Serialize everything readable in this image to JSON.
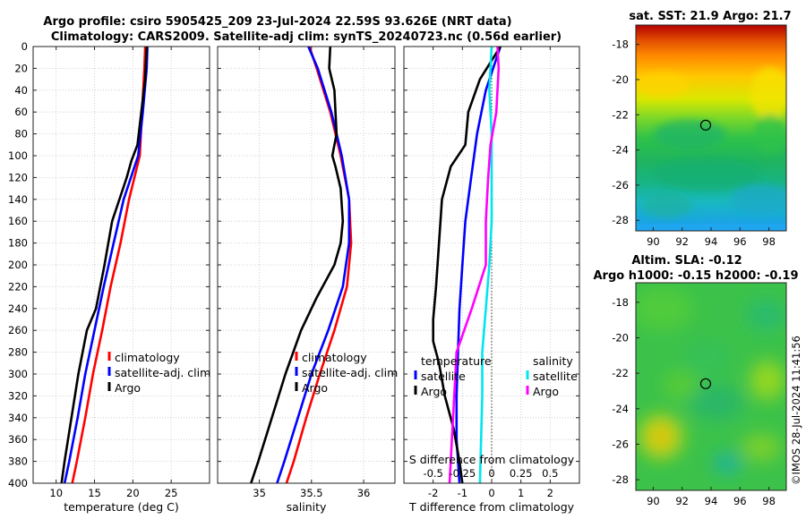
{
  "header": {
    "title_line1": "Argo profile: csiro 5905425_209 23-Jul-2024 22.59S 93.626E (NRT data)",
    "title_line2": "Climatology: CARS2009. Satellite-adj clim: synTS_20240723.nc (0.56d earlier)"
  },
  "footer": {
    "stamp": "©IMOS 28-Jul-2024 11:41:56"
  },
  "colors": {
    "climatology": "#ff0000",
    "satellite": "#0000ff",
    "argo": "#000000",
    "salinity_sat": "#00e5ee",
    "salinity_argo": "#ff00ff",
    "marker": "#000000"
  },
  "chart_data": [
    {
      "id": "temperature",
      "type": "line",
      "xlabel": "temperature (deg C)",
      "ylabel": "",
      "xlim": [
        7,
        30
      ],
      "ylim": [
        400,
        0
      ],
      "xticks": [
        10,
        15,
        20,
        25
      ],
      "xtick_labels": [
        "10",
        "15",
        "20",
        "25"
      ],
      "yticks": [
        0,
        20,
        40,
        60,
        80,
        100,
        120,
        140,
        160,
        180,
        200,
        220,
        240,
        260,
        280,
        300,
        320,
        340,
        360,
        380,
        400
      ],
      "ytick_labels": [
        "0",
        "20",
        "40",
        "60",
        "80",
        "100",
        "120",
        "140",
        "160",
        "180",
        "200",
        "220",
        "240",
        "260",
        "280",
        "300",
        "320",
        "340",
        "360",
        "380",
        "400"
      ],
      "legend": [
        "climatology",
        "satellite-adj. clim",
        "Argo"
      ],
      "series": [
        {
          "name": "climatology",
          "color": "#ff0000",
          "depth": [
            0,
            20,
            60,
            100,
            140,
            180,
            220,
            260,
            300,
            340,
            380,
            400
          ],
          "values": [
            21.6,
            21.5,
            21.2,
            20.9,
            19.5,
            18.4,
            17.1,
            16.0,
            14.8,
            13.8,
            12.7,
            12.1
          ]
        },
        {
          "name": "satellite-adj. clim",
          "color": "#0000ff",
          "depth": [
            0,
            20,
            60,
            100,
            140,
            180,
            220,
            260,
            300,
            340,
            380,
            400
          ],
          "values": [
            21.9,
            21.8,
            21.3,
            20.7,
            18.8,
            17.5,
            16.2,
            15.0,
            13.8,
            12.8,
            11.7,
            11.1
          ]
        },
        {
          "name": "Argo",
          "color": "#000000",
          "depth": [
            0,
            30,
            60,
            90,
            105,
            120,
            160,
            200,
            240,
            260,
            300,
            340,
            380,
            400
          ],
          "values": [
            21.8,
            21.6,
            21.1,
            20.6,
            19.8,
            19.2,
            17.3,
            16.3,
            15.2,
            14.0,
            12.9,
            12.0,
            11.1,
            10.7
          ]
        }
      ]
    },
    {
      "id": "salinity",
      "type": "line",
      "xlabel": "salinity",
      "xlim": [
        34.6,
        36.3
      ],
      "ylim": [
        400,
        0
      ],
      "xticks": [
        35,
        35.5,
        36
      ],
      "xtick_labels": [
        "35",
        "35.5",
        "36"
      ],
      "legend": [
        "climatology",
        "satellite-adj. clim",
        "Argo"
      ],
      "series": [
        {
          "name": "climatology",
          "color": "#ff0000",
          "depth": [
            0,
            20,
            60,
            100,
            140,
            180,
            220,
            260,
            300,
            340,
            380,
            400
          ],
          "values": [
            35.48,
            35.55,
            35.68,
            35.78,
            35.86,
            35.88,
            35.84,
            35.72,
            35.58,
            35.45,
            35.33,
            35.26
          ]
        },
        {
          "name": "satellite-adj. clim",
          "color": "#0000ff",
          "depth": [
            0,
            20,
            60,
            100,
            140,
            180,
            220,
            260,
            300,
            340,
            380,
            400
          ],
          "values": [
            35.47,
            35.56,
            35.69,
            35.79,
            35.86,
            35.86,
            35.8,
            35.66,
            35.5,
            35.37,
            35.24,
            35.17
          ]
        },
        {
          "name": "Argo",
          "color": "#000000",
          "depth": [
            0,
            20,
            40,
            80,
            100,
            110,
            130,
            160,
            180,
            200,
            230,
            260,
            300,
            340,
            380,
            400
          ],
          "values": [
            35.68,
            35.67,
            35.72,
            35.74,
            35.7,
            35.73,
            35.78,
            35.8,
            35.78,
            35.72,
            35.55,
            35.4,
            35.25,
            35.12,
            34.99,
            34.92
          ]
        }
      ]
    },
    {
      "id": "difference",
      "type": "line",
      "xlabel": "T difference from climatology",
      "top_label": "S difference from climatology",
      "xlim": [
        -3,
        3
      ],
      "ylim": [
        400,
        0
      ],
      "xticks": [
        -2,
        -1,
        0,
        1,
        2
      ],
      "xtick_labels": [
        "-2",
        "-1",
        "0",
        "1",
        "2"
      ],
      "s_ticks": [
        -0.5,
        -0.25,
        0,
        0.25,
        0.5
      ],
      "s_tick_labels": [
        "-0.5",
        "-0.25",
        "0",
        "0.25",
        "0.5"
      ],
      "legend_temperature": [
        "temperature",
        "satellite",
        "Argo"
      ],
      "legend_salinity": [
        "salinity",
        "satellite",
        "Argo"
      ],
      "series": [
        {
          "name": "T satellite",
          "color": "#0000ff",
          "depth": [
            0,
            40,
            80,
            120,
            160,
            200,
            240,
            280,
            320,
            360,
            400
          ],
          "values": [
            0.3,
            -0.2,
            -0.5,
            -0.7,
            -0.9,
            -1.0,
            -1.1,
            -1.15,
            -1.2,
            -1.2,
            -1.1
          ]
        },
        {
          "name": "T Argo",
          "color": "#000000",
          "depth": [
            0,
            30,
            60,
            90,
            110,
            140,
            180,
            220,
            250,
            270,
            290,
            320,
            350,
            380,
            400
          ],
          "values": [
            0.3,
            -0.4,
            -0.8,
            -0.9,
            -1.4,
            -1.7,
            -1.8,
            -1.9,
            -2.0,
            -2.0,
            -1.8,
            -1.6,
            -1.3,
            -1.1,
            -1.0
          ]
        },
        {
          "name": "S satellite",
          "color": "#00e5ee",
          "depth": [
            0,
            40,
            80,
            120,
            160,
            200,
            240,
            280,
            320,
            360,
            400
          ],
          "values": [
            0.0,
            -0.02,
            0.0,
            0.0,
            0.0,
            -0.02,
            -0.05,
            -0.08,
            -0.08,
            -0.09,
            -0.1
          ]
        },
        {
          "name": "S Argo",
          "color": "#ff00ff",
          "depth": [
            0,
            20,
            40,
            60,
            90,
            120,
            160,
            200,
            240,
            280,
            320,
            360,
            400
          ],
          "values": [
            0.05,
            0.06,
            0.05,
            0.04,
            -0.01,
            -0.03,
            -0.05,
            -0.05,
            -0.17,
            -0.3,
            -0.32,
            -0.34,
            -0.36
          ]
        }
      ]
    },
    {
      "id": "sat_sst",
      "type": "heatmap",
      "title": "sat. SST: 21.9   Argo: 21.7",
      "xticks": [
        90,
        92,
        94,
        96,
        98
      ],
      "xtick_labels": [
        "90",
        "92",
        "94",
        "96",
        "98"
      ],
      "yticks": [
        -18,
        -20,
        -22,
        -24,
        -26,
        -28
      ],
      "ytick_labels": [
        "-18",
        "-20",
        "-22",
        "-24",
        "-26",
        "-28"
      ],
      "xlim": [
        88.8,
        99.2
      ],
      "ylim": [
        -28.6,
        -16.9
      ],
      "marker": {
        "lon": 93.626,
        "lat": -22.59
      }
    },
    {
      "id": "altim",
      "type": "heatmap",
      "title_line1": "Altim. SLA: -0.12",
      "title_line2": "Argo h1000: -0.15 h2000: -0.19",
      "xticks": [
        90,
        92,
        94,
        96,
        98
      ],
      "xtick_labels": [
        "90",
        "92",
        "94",
        "96",
        "98"
      ],
      "yticks": [
        -18,
        -20,
        -22,
        -24,
        -26,
        -28
      ],
      "ytick_labels": [
        "-18",
        "-20",
        "-22",
        "-24",
        "-26",
        "-28"
      ],
      "xlim": [
        88.8,
        99.2
      ],
      "ylim": [
        -28.6,
        -16.9
      ],
      "marker": {
        "lon": 93.626,
        "lat": -22.59
      }
    }
  ]
}
